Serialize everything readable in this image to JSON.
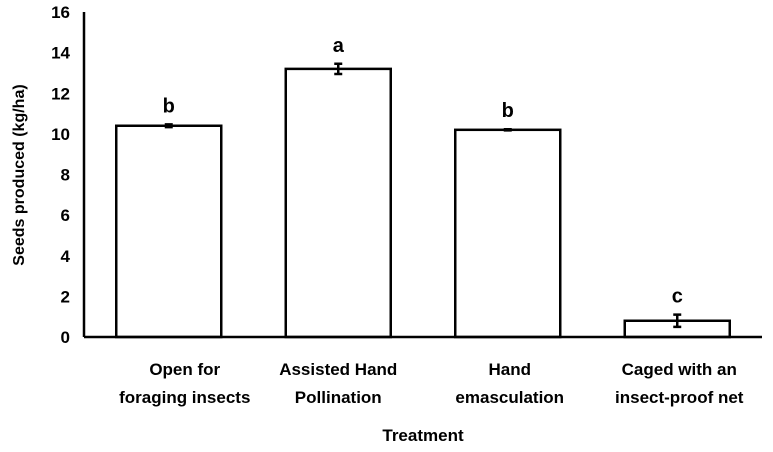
{
  "chart_data": {
    "type": "bar",
    "title": "",
    "xlabel": "Treatment",
    "ylabel": "Seeds produced (kg/ha)",
    "ylim": [
      0,
      16
    ],
    "yticks": [
      0,
      2,
      4,
      6,
      8,
      10,
      12,
      14,
      16
    ],
    "categories": [
      [
        "Open for",
        "foraging insects"
      ],
      [
        "Assisted Hand",
        "Pollination"
      ],
      [
        "Hand",
        "emasculation"
      ],
      [
        "Caged with an",
        "insect-proof net"
      ]
    ],
    "values": [
      10.4,
      13.2,
      10.2,
      0.8
    ],
    "errors": [
      0.07,
      0.25,
      0.03,
      0.3
    ],
    "letters": [
      "b",
      "a",
      "b",
      "c"
    ],
    "grid": false,
    "bar_fill": "#ffffff",
    "bar_stroke": "#000000"
  }
}
